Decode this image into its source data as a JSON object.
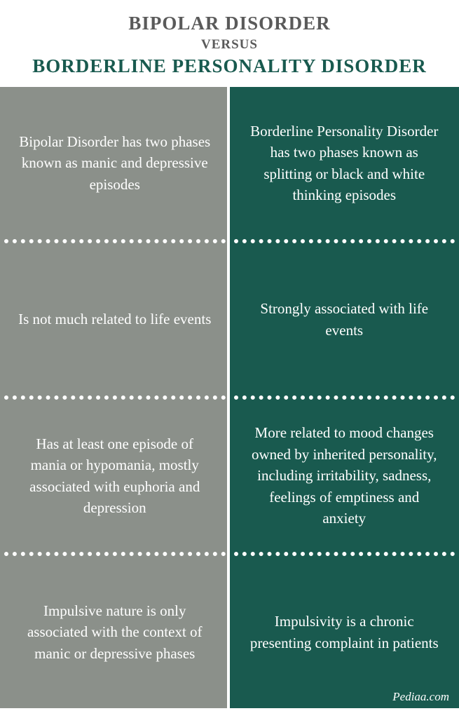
{
  "header": {
    "title_1": "BIPOLAR DISORDER",
    "versus": "VERSUS",
    "title_2": "BORDERLINE PERSONALITY DISORDER",
    "title_1_color": "#5a5a5a",
    "versus_color": "#5a5a5a",
    "title_2_color": "#195a4f",
    "title_1_fontsize": 27,
    "versus_fontsize": 19,
    "title_2_fontsize": 27
  },
  "columns": {
    "left": {
      "background_color": "#8b908a",
      "text_color": "#ffffff",
      "fontsize": 21,
      "cells": [
        "Bipolar Disorder has two phases known as manic and depressive episodes",
        "Is not much related to life events",
        "Has at least one episode of mania or hypomania, mostly associated with euphoria and depression",
        "Impulsive nature is only associated with the context of manic or depressive phases"
      ]
    },
    "right": {
      "background_color": "#195a4f",
      "text_color": "#ffffff",
      "fontsize": 21,
      "cells": [
        "Borderline Personality Disorder has two phases known as splitting or black and white thinking episodes",
        "Strongly associated with life events",
        "More related to mood changes owned by inherited personality, including irritability, sadness, feelings of emptiness and anxiety",
        "Impulsivity is a chronic presenting complaint in patients"
      ]
    },
    "divider_color": "#ffffff"
  },
  "footer": {
    "text": "Pediaa.com",
    "fontsize": 17,
    "color": "#ffffff"
  }
}
